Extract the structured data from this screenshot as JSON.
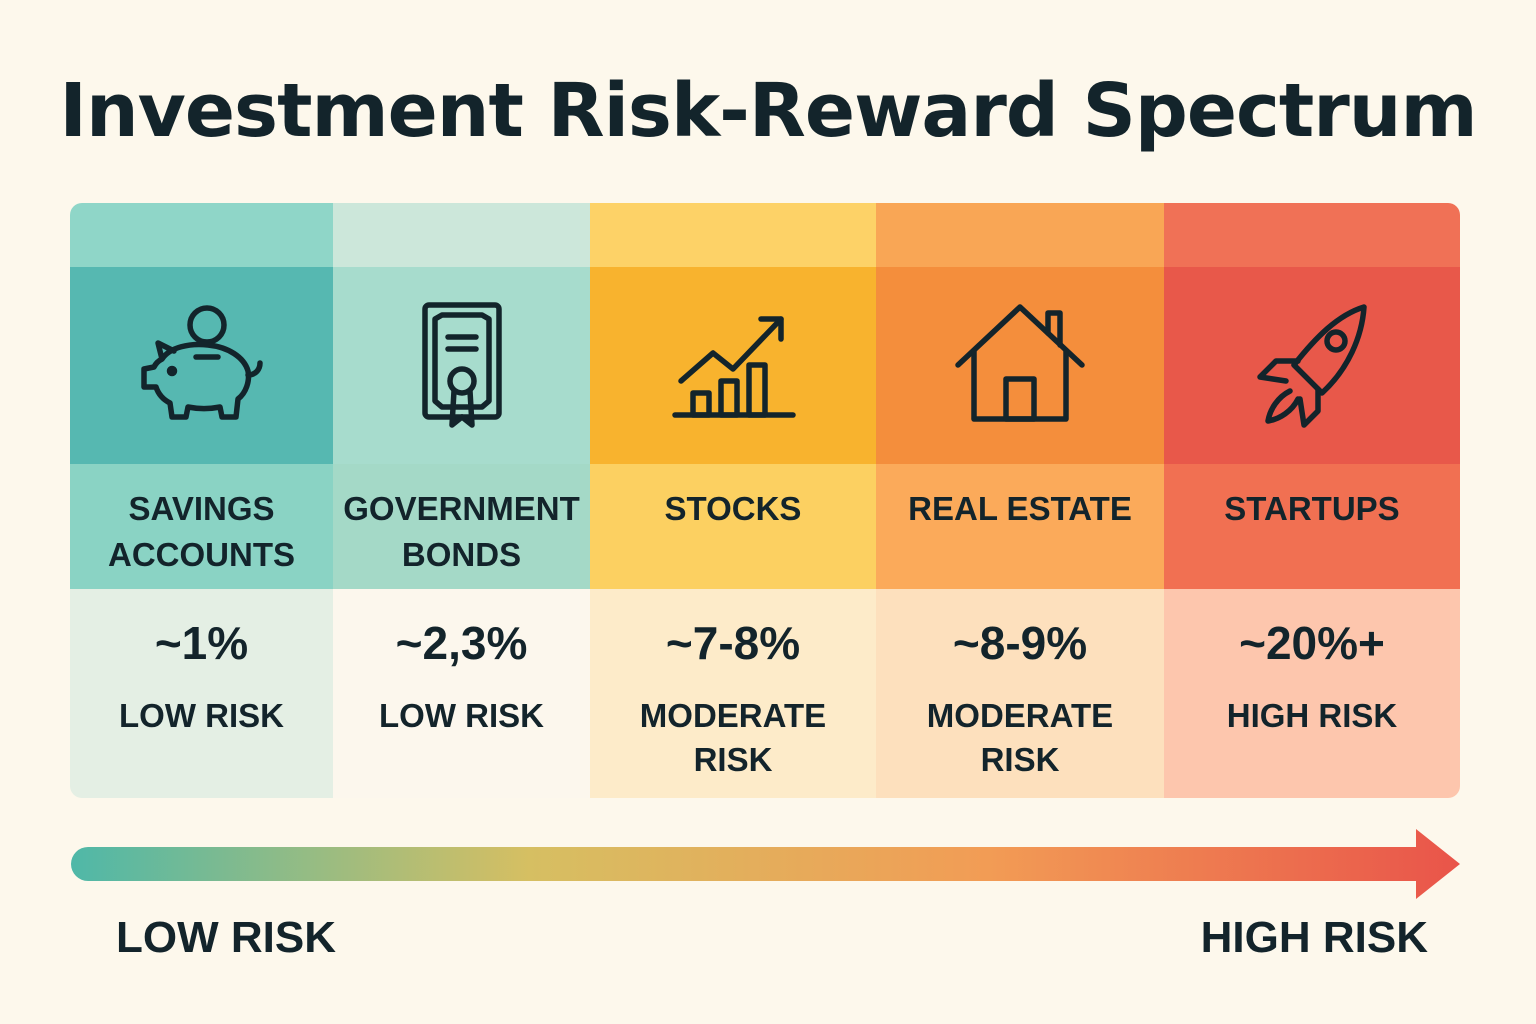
{
  "title": "Investment Risk-Reward Spectrum",
  "columns": [
    {
      "name": "SAVINGS\nACCOUNTS",
      "value": "~1%",
      "risk": "LOW RISK",
      "icon": "piggy-bank-icon",
      "colors": {
        "top": "#8fd6c8",
        "icon": "#56b8b1",
        "name": "#8ad3c4",
        "val": "#e4efe4"
      }
    },
    {
      "name": "GOVERNMENT\nBONDS",
      "value": "~2,3%",
      "risk": "LOW RISK",
      "icon": "certificate-icon",
      "colors": {
        "top": "#cce7da",
        "icon": "#a7dccd",
        "name": "#a4d9c7",
        "val": "#fcf7ed"
      }
    },
    {
      "name": "STOCKS",
      "value": "~7-8%",
      "risk": "MODERATE\nRISK",
      "icon": "growth-chart-icon",
      "colors": {
        "top": "#fdd267",
        "icon": "#f8b32e",
        "name": "#fcd061",
        "val": "#fdebc9"
      }
    },
    {
      "name": "REAL ESTATE",
      "value": "~8-9%",
      "risk": "MODERATE\nRISK",
      "icon": "house-icon",
      "colors": {
        "top": "#f9a655",
        "icon": "#f48e3c",
        "name": "#fbaa5a",
        "val": "#fde0bd"
      }
    },
    {
      "name": "STARTUPS",
      "value": "~20%+",
      "risk": "HIGH RISK",
      "icon": "rocket-icon",
      "colors": {
        "top": "#f07156",
        "icon": "#e8584a",
        "name": "#f17052",
        "val": "#fdc6ad"
      }
    }
  ],
  "scale": {
    "low_label": "LOW RISK",
    "high_label": "HIGH RISK",
    "gradient": [
      "#4fb8a8",
      "#d6bf62",
      "#f29c55",
      "#e9544a"
    ]
  }
}
